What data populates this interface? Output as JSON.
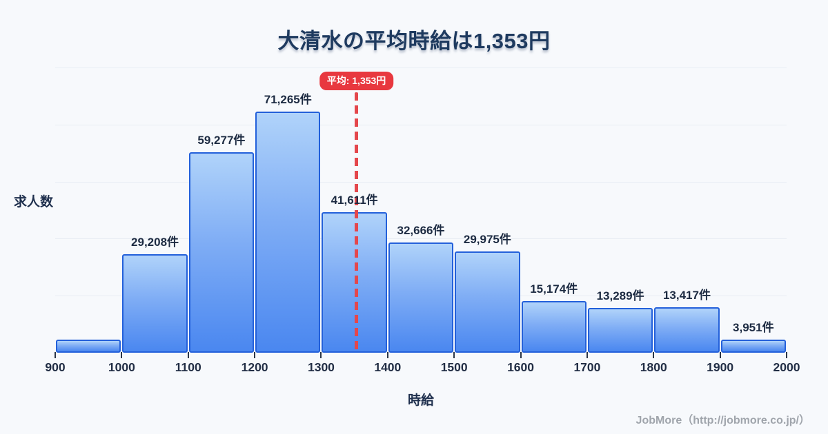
{
  "title": "大清水の平均時給は1,353円",
  "average": {
    "badge_label": "平均: 1,353円",
    "value": 1353,
    "line_color": "#e4474c",
    "badge_color": "#e8383f"
  },
  "footer": {
    "credit": "JobMore（http://jobmore.co.jp/）"
  },
  "chart_data": {
    "type": "bar",
    "subtype": "histogram",
    "title": "大清水の平均時給は1,353円",
    "xlabel": "時給",
    "ylabel": "求人数",
    "unit_suffix": "件",
    "x_ticks": [
      900,
      1000,
      1100,
      1200,
      1300,
      1400,
      1500,
      1600,
      1700,
      1800,
      1900,
      2000
    ],
    "xlim": [
      900,
      2000
    ],
    "ylim": [
      0,
      84300
    ],
    "grid": true,
    "gridline_count": 5,
    "legend": false,
    "bins": [
      {
        "range": [
          900,
          1000
        ],
        "value": 3900,
        "label": "",
        "estimated": true
      },
      {
        "range": [
          1000,
          1100
        ],
        "value": 29208,
        "label": "29,208件"
      },
      {
        "range": [
          1100,
          1200
        ],
        "value": 59277,
        "label": "59,277件"
      },
      {
        "range": [
          1200,
          1300
        ],
        "value": 71265,
        "label": "71,265件"
      },
      {
        "range": [
          1300,
          1400
        ],
        "value": 41611,
        "label": "41,611件"
      },
      {
        "range": [
          1400,
          1500
        ],
        "value": 32666,
        "label": "32,666件"
      },
      {
        "range": [
          1500,
          1600
        ],
        "value": 29975,
        "label": "29,975件"
      },
      {
        "range": [
          1600,
          1700
        ],
        "value": 15174,
        "label": "15,174件"
      },
      {
        "range": [
          1700,
          1800
        ],
        "value": 13289,
        "label": "13,289件"
      },
      {
        "range": [
          1800,
          1900
        ],
        "value": 13417,
        "label": "13,417件"
      },
      {
        "range": [
          1900,
          2000
        ],
        "value": 3951,
        "label": "3,951件"
      }
    ],
    "annotation": {
      "text": "平均: 1,353円",
      "x": 1353
    },
    "colors": {
      "background": "#f7f9fc",
      "bar_fill_top": "#b0d3fa",
      "bar_fill_bottom": "#4a87f0",
      "bar_border": "#2360da",
      "gridline": "#e8edf4",
      "text_dark": "#1e3a5f",
      "average_red": "#e8383f",
      "footer_gray": "#a0a5ac"
    }
  }
}
